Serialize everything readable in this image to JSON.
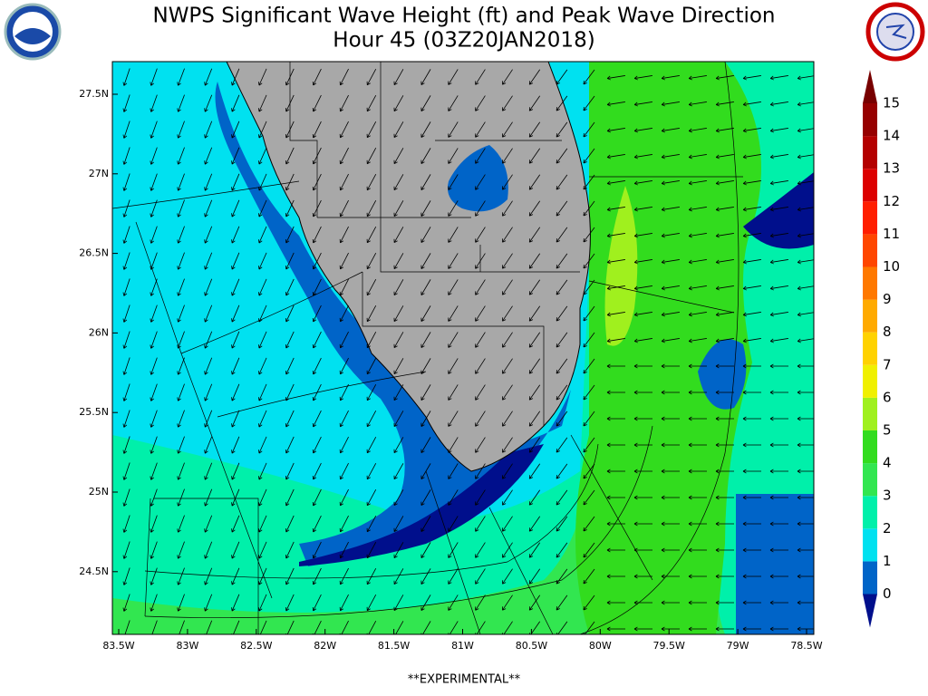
{
  "header": {
    "title": "NWPS Significant Wave Height (ft) and Peak Wave Direction",
    "subtitle": "Hour 45 (03Z20JAN2018)"
  },
  "map": {
    "lat_labels": [
      "27.5N",
      "27N",
      "26.5N",
      "26N",
      "25.5N",
      "25N",
      "24.5N"
    ],
    "lon_labels": [
      "83.5W",
      "83W",
      "82.5W",
      "82W",
      "81.5W",
      "81W",
      "80.5W",
      "80W",
      "79.5W",
      "79W",
      "78.5W"
    ]
  },
  "colorbar": {
    "ticks": [
      0,
      1,
      2,
      3,
      4,
      5,
      6,
      7,
      8,
      9,
      10,
      11,
      12,
      13,
      14,
      15
    ],
    "colors": [
      "#000f8c",
      "#0064c8",
      "#00e1f0",
      "#00f0aa",
      "#32e650",
      "#32dc1e",
      "#a0f01e",
      "#f0f000",
      "#ffd200",
      "#ffaa00",
      "#ff7800",
      "#ff4600",
      "#ff1e00",
      "#dc0000",
      "#b40000",
      "#960000",
      "#780000"
    ]
  },
  "footer": "**EXPERIMENTAL**"
}
